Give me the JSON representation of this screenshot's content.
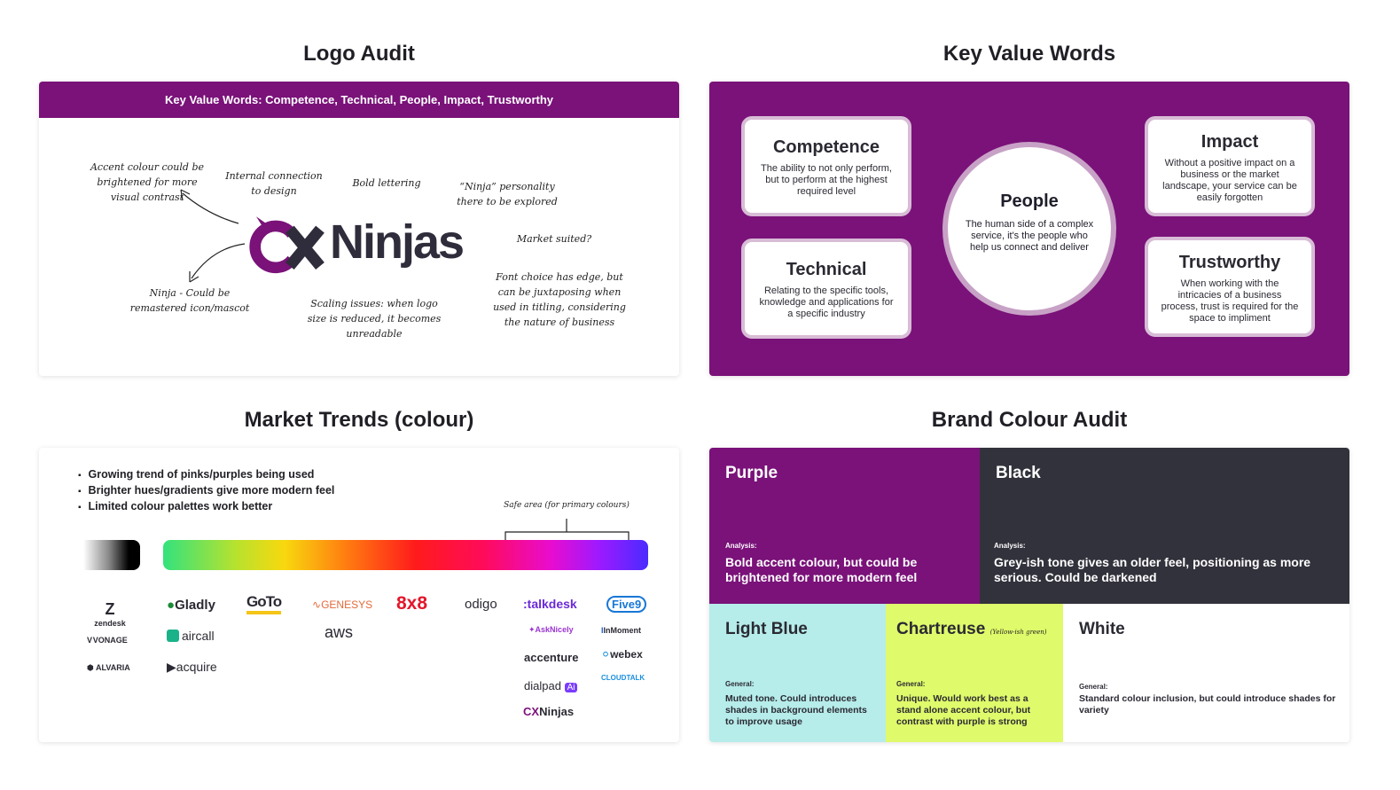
{
  "titles": {
    "logo_audit": "Logo Audit",
    "key_value_words": "Key Value Words",
    "market_trends": "Market Trends (colour)",
    "brand_colour_audit": "Brand Colour Audit"
  },
  "logo_audit": {
    "banner": "Key Value Words: Competence, Technical, People, Impact, Trustworthy",
    "logo_text": "Ninjas",
    "notes": {
      "accent": "Accent colour could be brightened for more visual contrast",
      "internal": "Internal connection to design",
      "bold": "Bold lettering",
      "personality": "“Ninja” personality there to be explored",
      "market": "Market suited?",
      "ninja": "Ninja - Could be remastered icon/mascot",
      "scaling": "Scaling issues: when logo size is reduced, it becomes unreadable",
      "font": "Font choice has edge, but can be juxtaposing when used in titling, considering the nature of business"
    }
  },
  "key_values": {
    "competence": {
      "title": "Competence",
      "desc": "The ability to not only perform, but to perform at the highest required level"
    },
    "technical": {
      "title": "Technical",
      "desc": "Relating to the specific tools, knowledge and applications for a specific industry"
    },
    "people": {
      "title": "People",
      "desc": "The human side of a complex service, it's the people who help us connect and deliver"
    },
    "impact": {
      "title": "Impact",
      "desc": "Without a positive impact on a business or the market landscape, your service can be easily forgotten"
    },
    "trustworthy": {
      "title": "Trustworthy",
      "desc": "When working with the intricacies of a business process, trust is required for the space to impliment"
    }
  },
  "market_trends": {
    "bullets": [
      "Growing trend of pinks/purples being used",
      "Brighter hues/gradients give more modern feel",
      "Limited colour palettes work better"
    ],
    "safe_area": "Safe area (for primary colours)",
    "brands": {
      "zendesk": "zendesk",
      "vonage": "VONAGE",
      "alvaria": "ALVARIA",
      "gladly": "Gladly",
      "aircall": "aircall",
      "acquire": "acquire",
      "goto": "GoTo",
      "genesys": "GENESYS",
      "aws": "aws",
      "eightx8": "8x8",
      "odigo": "odigo",
      "talkdesk": ":talkdesk",
      "asknicely": "AskNicely",
      "accenture": "accenture",
      "dialpad": "dialpad",
      "cxninjas": "Ninjas",
      "five9": "Five9",
      "inmoment": "InMoment",
      "webex": "webex",
      "cloudtalk": "CLOUDTALK"
    }
  },
  "brand_colours": {
    "purple": {
      "name": "Purple",
      "label": "Analysis:",
      "text": "Bold accent colour, but could be brightened for more modern feel",
      "hex": "#7a1279"
    },
    "black": {
      "name": "Black",
      "label": "Analysis:",
      "text": "Grey-ish tone gives an older feel, positioning as more serious. Could be darkened",
      "hex": "#32323c"
    },
    "light_blue": {
      "name": "Light Blue",
      "label": "General:",
      "text": "Muted tone. Could introduces shades in background elements to improve usage",
      "hex": "#b6ecea"
    },
    "chartreuse": {
      "name": "Chartreuse",
      "note": "(Yellow-ish green)",
      "label": "General:",
      "text": "Unique. Would work best as a stand alone accent colour, but contrast with purple is strong",
      "hex": "#dffa6b"
    },
    "white": {
      "name": "White",
      "label": "General:",
      "text": "Standard colour inclusion, but could introduce shades for variety",
      "hex": "#ffffff"
    }
  }
}
